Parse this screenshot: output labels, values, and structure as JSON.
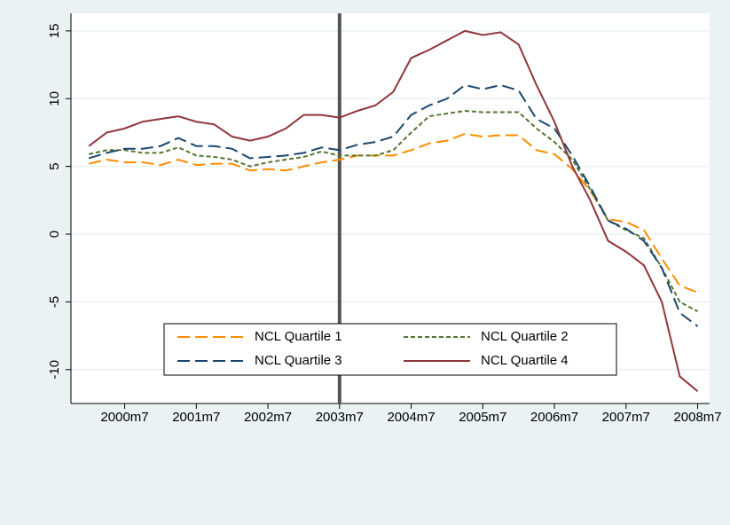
{
  "chart_data": {
    "type": "line",
    "x": [
      480,
      483,
      486,
      489,
      492,
      495,
      498,
      501,
      504,
      507,
      510,
      513,
      516,
      519,
      522,
      525,
      528,
      531,
      534,
      537,
      540,
      543,
      546,
      549,
      552,
      555,
      558,
      561,
      564,
      567,
      570,
      573,
      576,
      579,
      582
    ],
    "xlim": [
      477,
      584
    ],
    "xticks": [
      {
        "value": 486,
        "label": "2000m7"
      },
      {
        "value": 498,
        "label": "2001m7"
      },
      {
        "value": 510,
        "label": "2002m7"
      },
      {
        "value": 522,
        "label": "2003m7"
      },
      {
        "value": 534,
        "label": "2004m7"
      },
      {
        "value": 546,
        "label": "2005m7"
      },
      {
        "value": 558,
        "label": "2006m7"
      },
      {
        "value": 570,
        "label": "2007m7"
      },
      {
        "value": 582,
        "label": "2008m7"
      }
    ],
    "ylim": [
      -12.5,
      16.3
    ],
    "yticks": [
      -10,
      -5,
      0,
      5,
      10,
      15
    ],
    "grid": true,
    "vline_x": 522,
    "series": [
      {
        "name": "NCL Quartile 1",
        "color": "#ff8c00",
        "dash": "14 6",
        "values": [
          5.2,
          5.5,
          5.3,
          5.3,
          5.1,
          5.5,
          5.1,
          5.2,
          5.2,
          4.7,
          4.8,
          4.7,
          5.0,
          5.3,
          5.5,
          5.8,
          5.8,
          5.8,
          6.2,
          6.7,
          6.9,
          7.4,
          7.2,
          7.3,
          7.3,
          6.2,
          5.9,
          4.8,
          3.2,
          1.1,
          0.9,
          0.3,
          -1.8,
          -3.8,
          -4.3
        ]
      },
      {
        "name": "NCL Quartile 2",
        "color": "#55752f",
        "dash": "5 3",
        "values": [
          5.9,
          6.2,
          6.2,
          6.0,
          6.0,
          6.4,
          5.8,
          5.7,
          5.5,
          5.0,
          5.3,
          5.5,
          5.7,
          6.1,
          5.8,
          5.8,
          5.8,
          6.2,
          7.5,
          8.7,
          8.9,
          9.1,
          9.0,
          9.0,
          9.0,
          7.8,
          6.8,
          5.5,
          3.3,
          1.0,
          0.3,
          -0.3,
          -2.5,
          -5.0,
          -5.7
        ]
      },
      {
        "name": "NCL Quartile 3",
        "color": "#1a476f",
        "dash": "14 6",
        "values": [
          5.6,
          6.0,
          6.3,
          6.3,
          6.5,
          7.1,
          6.5,
          6.5,
          6.3,
          5.6,
          5.7,
          5.8,
          6.0,
          6.4,
          6.2,
          6.6,
          6.8,
          7.2,
          8.8,
          9.5,
          10.0,
          11.0,
          10.7,
          11.0,
          10.6,
          8.5,
          7.8,
          5.8,
          3.5,
          1.0,
          0.4,
          -0.5,
          -2.5,
          -5.8,
          -6.8
        ]
      },
      {
        "name": "NCL Quartile 4",
        "color": "#90353b",
        "dash": "none",
        "values": [
          6.5,
          7.5,
          7.8,
          8.3,
          8.5,
          8.7,
          8.3,
          8.1,
          7.2,
          6.9,
          7.2,
          7.8,
          8.8,
          8.8,
          8.6,
          9.1,
          9.5,
          10.5,
          13.0,
          13.6,
          14.3,
          15.0,
          14.7,
          14.9,
          14.0,
          11.0,
          8.3,
          5.0,
          2.5,
          -0.5,
          -1.3,
          -2.3,
          -5.0,
          -10.5,
          -11.6
        ]
      }
    ]
  }
}
